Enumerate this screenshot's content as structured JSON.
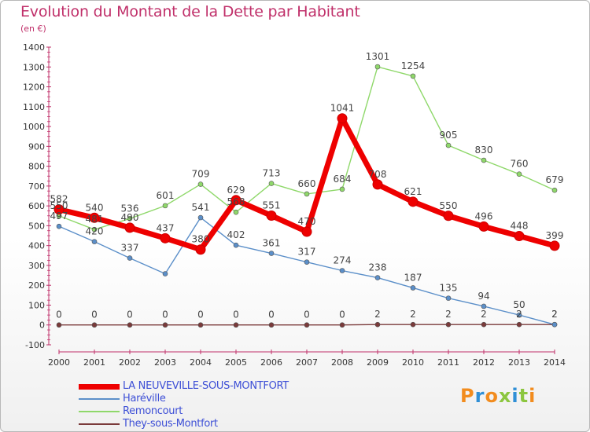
{
  "title": "Evolution du Montant de la Dette par Habitant",
  "subtitle": "(en €)",
  "logo": "Proxiti",
  "chart_data": {
    "type": "line",
    "title": "Evolution du Montant de la Dette par Habitant",
    "subtitle": "(en €)",
    "x": [
      "2000",
      "2001",
      "2002",
      "2003",
      "2004",
      "2005",
      "2006",
      "2007",
      "2008",
      "2009",
      "2010",
      "2011",
      "2012",
      "2013",
      "2014"
    ],
    "ylim": [
      -100,
      1400
    ],
    "yticks": [
      -100,
      0,
      100,
      200,
      300,
      400,
      500,
      600,
      700,
      800,
      900,
      1000,
      1100,
      1200,
      1300,
      1400
    ],
    "grid": false,
    "legend": "bottom-left",
    "series": [
      {
        "name": "LA NEUVEVILLE-SOUS-MONTFORT",
        "color": "#ee0000",
        "values": [
          582,
          540,
          490,
          437,
          380,
          629,
          551,
          470,
          1041,
          708,
          621,
          550,
          496,
          448,
          399
        ]
      },
      {
        "name": "Haréville",
        "color": "#5b8fc9",
        "values": [
          497,
          420,
          337,
          258,
          541,
          402,
          361,
          317,
          274,
          238,
          187,
          135,
          94,
          50,
          2
        ]
      },
      {
        "name": "Remoncourt",
        "color": "#8fd86a",
        "values": [
          550,
          481,
          536,
          601,
          709,
          568,
          713,
          660,
          684,
          1301,
          1254,
          905,
          830,
          760,
          679
        ]
      },
      {
        "name": "They-sous-Montfort",
        "color": "#7a3a3a",
        "values": [
          0,
          0,
          0,
          0,
          0,
          0,
          0,
          0,
          0,
          2,
          2,
          2,
          2,
          2,
          2
        ]
      }
    ],
    "labels": {
      "LA NEUVEVILLE-SOUS-MONTFORT": [
        "582",
        "540",
        "490",
        "437",
        "380",
        "629",
        "551",
        "470",
        "1041",
        "708",
        "621",
        "550",
        "496",
        "448",
        "399"
      ],
      "Haréville": [
        "497",
        "420",
        "337",
        "",
        "541",
        "402",
        "361",
        "317",
        "274",
        "238",
        "187",
        "135",
        "94",
        "50",
        "2"
      ],
      "Remoncourt": [
        "550",
        "481",
        "536",
        "601",
        "709",
        "568",
        "713",
        "660",
        "684",
        "1301",
        "1254",
        "905",
        "830",
        "760",
        "679"
      ],
      "They-sous-Montfort": [
        "0",
        "0",
        "0",
        "0",
        "0",
        "0",
        "0",
        "0",
        "0",
        "2",
        "2",
        "2",
        "2",
        "2",
        "2"
      ]
    }
  }
}
